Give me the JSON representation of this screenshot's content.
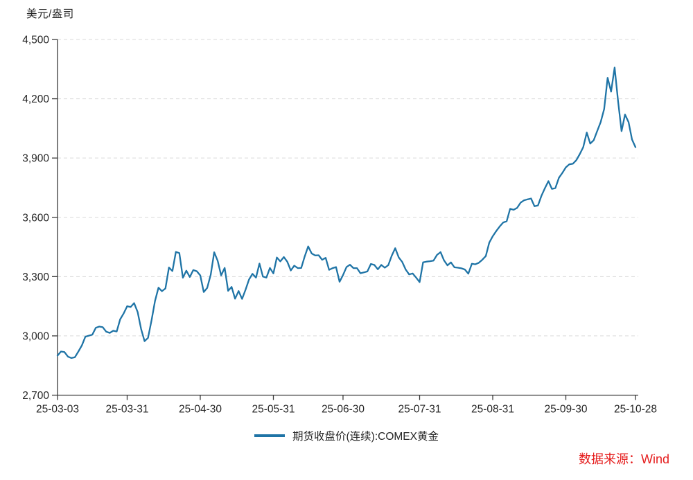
{
  "page": {
    "unit_label": "美元/盎司",
    "source_label": "数据来源：Wind"
  },
  "legend": {
    "items": [
      {
        "label": "期货收盘价(连续):COMEX黄金",
        "color": "#1f74a6"
      }
    ]
  },
  "colors": {
    "line": "#1f74a6",
    "grid": "#d9d9d9",
    "axis": "#3a3a3a",
    "text": "#262626",
    "source_red": "#e51d1d"
  },
  "chart_data": {
    "type": "line",
    "title": "",
    "ylabel": "美元/盎司",
    "xlabel": "",
    "grid": "horizontal-dashed",
    "legend_position": "bottom-center",
    "ylim": [
      2700,
      4500
    ],
    "ytick_values": [
      2700,
      3000,
      3300,
      3600,
      3900,
      4200,
      4500
    ],
    "ytick_labels": [
      "2,700",
      "3,000",
      "3,300",
      "3,600",
      "3,900",
      "4,200",
      "4,500"
    ],
    "xticks": [
      {
        "label": "25-03-03",
        "index": 0
      },
      {
        "label": "25-03-31",
        "index": 20
      },
      {
        "label": "25-04-30",
        "index": 41
      },
      {
        "label": "25-05-31",
        "index": 62
      },
      {
        "label": "25-06-30",
        "index": 82
      },
      {
        "label": "25-07-31",
        "index": 104
      },
      {
        "label": "25-08-31",
        "index": 125
      },
      {
        "label": "25-09-30",
        "index": 146
      },
      {
        "label": "25-10-28",
        "index": 166
      }
    ],
    "series": [
      {
        "name": "期货收盘价(连续):COMEX黄金",
        "color": "#1f74a6",
        "x": [
          "25-03-03",
          "25-03-04",
          "25-03-05",
          "25-03-06",
          "25-03-07",
          "25-03-10",
          "25-03-11",
          "25-03-12",
          "25-03-13",
          "25-03-14",
          "25-03-17",
          "25-03-18",
          "25-03-19",
          "25-03-20",
          "25-03-21",
          "25-03-24",
          "25-03-25",
          "25-03-26",
          "25-03-27",
          "25-03-28",
          "25-03-31",
          "25-04-01",
          "25-04-02",
          "25-04-03",
          "25-04-04",
          "25-04-07",
          "25-04-08",
          "25-04-09",
          "25-04-10",
          "25-04-11",
          "25-04-14",
          "25-04-15",
          "25-04-16",
          "25-04-17",
          "25-04-21",
          "25-04-22",
          "25-04-23",
          "25-04-24",
          "25-04-25",
          "25-04-28",
          "25-04-29",
          "25-04-30",
          "25-05-01",
          "25-05-02",
          "25-05-05",
          "25-05-06",
          "25-05-07",
          "25-05-08",
          "25-05-09",
          "25-05-12",
          "25-05-13",
          "25-05-14",
          "25-05-15",
          "25-05-16",
          "25-05-19",
          "25-05-20",
          "25-05-21",
          "25-05-22",
          "25-05-23",
          "25-05-27",
          "25-05-28",
          "25-05-29",
          "25-05-30",
          "25-06-02",
          "25-06-03",
          "25-06-04",
          "25-06-05",
          "25-06-06",
          "25-06-09",
          "25-06-10",
          "25-06-11",
          "25-06-12",
          "25-06-13",
          "25-06-16",
          "25-06-17",
          "25-06-18",
          "25-06-20",
          "25-06-23",
          "25-06-24",
          "25-06-25",
          "25-06-26",
          "25-06-27",
          "25-06-30",
          "25-07-01",
          "25-07-02",
          "25-07-03",
          "25-07-07",
          "25-07-08",
          "25-07-09",
          "25-07-10",
          "25-07-11",
          "25-07-14",
          "25-07-15",
          "25-07-16",
          "25-07-17",
          "25-07-18",
          "25-07-21",
          "25-07-22",
          "25-07-23",
          "25-07-24",
          "25-07-25",
          "25-07-28",
          "25-07-29",
          "25-07-30",
          "25-07-31",
          "25-08-01",
          "25-08-04",
          "25-08-05",
          "25-08-06",
          "25-08-07",
          "25-08-08",
          "25-08-11",
          "25-08-12",
          "25-08-13",
          "25-08-14",
          "25-08-15",
          "25-08-18",
          "25-08-19",
          "25-08-20",
          "25-08-21",
          "25-08-22",
          "25-08-25",
          "25-08-26",
          "25-08-27",
          "25-08-28",
          "25-08-29",
          "25-09-02",
          "25-09-03",
          "25-09-04",
          "25-09-05",
          "25-09-08",
          "25-09-09",
          "25-09-10",
          "25-09-11",
          "25-09-12",
          "25-09-15",
          "25-09-16",
          "25-09-17",
          "25-09-18",
          "25-09-19",
          "25-09-22",
          "25-09-23",
          "25-09-24",
          "25-09-25",
          "25-09-26",
          "25-09-29",
          "25-09-30",
          "25-10-01",
          "25-10-02",
          "25-10-03",
          "25-10-06",
          "25-10-07",
          "25-10-08",
          "25-10-09",
          "25-10-10",
          "25-10-13",
          "25-10-14",
          "25-10-15",
          "25-10-16",
          "25-10-17",
          "25-10-20",
          "25-10-21",
          "25-10-22",
          "25-10-23",
          "25-10-24",
          "25-10-27",
          "25-10-28"
        ],
        "values": [
          2900,
          2921,
          2918,
          2895,
          2888,
          2892,
          2921,
          2952,
          2996,
          3001,
          3006,
          3041,
          3047,
          3044,
          3021,
          3015,
          3026,
          3022,
          3084,
          3114,
          3150,
          3146,
          3166,
          3121,
          3035,
          2973,
          2990,
          3079,
          3177,
          3244,
          3226,
          3240,
          3346,
          3328,
          3425,
          3419,
          3294,
          3330,
          3298,
          3333,
          3327,
          3306,
          3222,
          3243,
          3310,
          3423,
          3380,
          3306,
          3344,
          3228,
          3248,
          3188,
          3227,
          3187,
          3233,
          3285,
          3314,
          3295,
          3366,
          3300,
          3295,
          3344,
          3316,
          3397,
          3377,
          3399,
          3375,
          3331,
          3355,
          3343,
          3344,
          3402,
          3453,
          3417,
          3407,
          3408,
          3385,
          3395,
          3334,
          3343,
          3348,
          3274,
          3308,
          3348,
          3360,
          3343,
          3343,
          3317,
          3321,
          3326,
          3364,
          3359,
          3337,
          3359,
          3345,
          3358,
          3406,
          3444,
          3397,
          3374,
          3336,
          3311,
          3316,
          3295,
          3272,
          3372,
          3376,
          3378,
          3381,
          3410,
          3424,
          3382,
          3357,
          3372,
          3347,
          3345,
          3342,
          3336,
          3315,
          3365,
          3362,
          3370,
          3385,
          3404,
          3472,
          3504,
          3530,
          3554,
          3574,
          3580,
          3643,
          3638,
          3648,
          3674,
          3686,
          3691,
          3695,
          3656,
          3660,
          3709,
          3748,
          3783,
          3744,
          3748,
          3800,
          3825,
          3853,
          3868,
          3871,
          3889,
          3920,
          3955,
          4029,
          3973,
          3990,
          4036,
          4082,
          4148,
          4306,
          4236,
          4358,
          4187,
          4036,
          4120,
          4082,
          3994,
          3955
        ]
      }
    ]
  }
}
